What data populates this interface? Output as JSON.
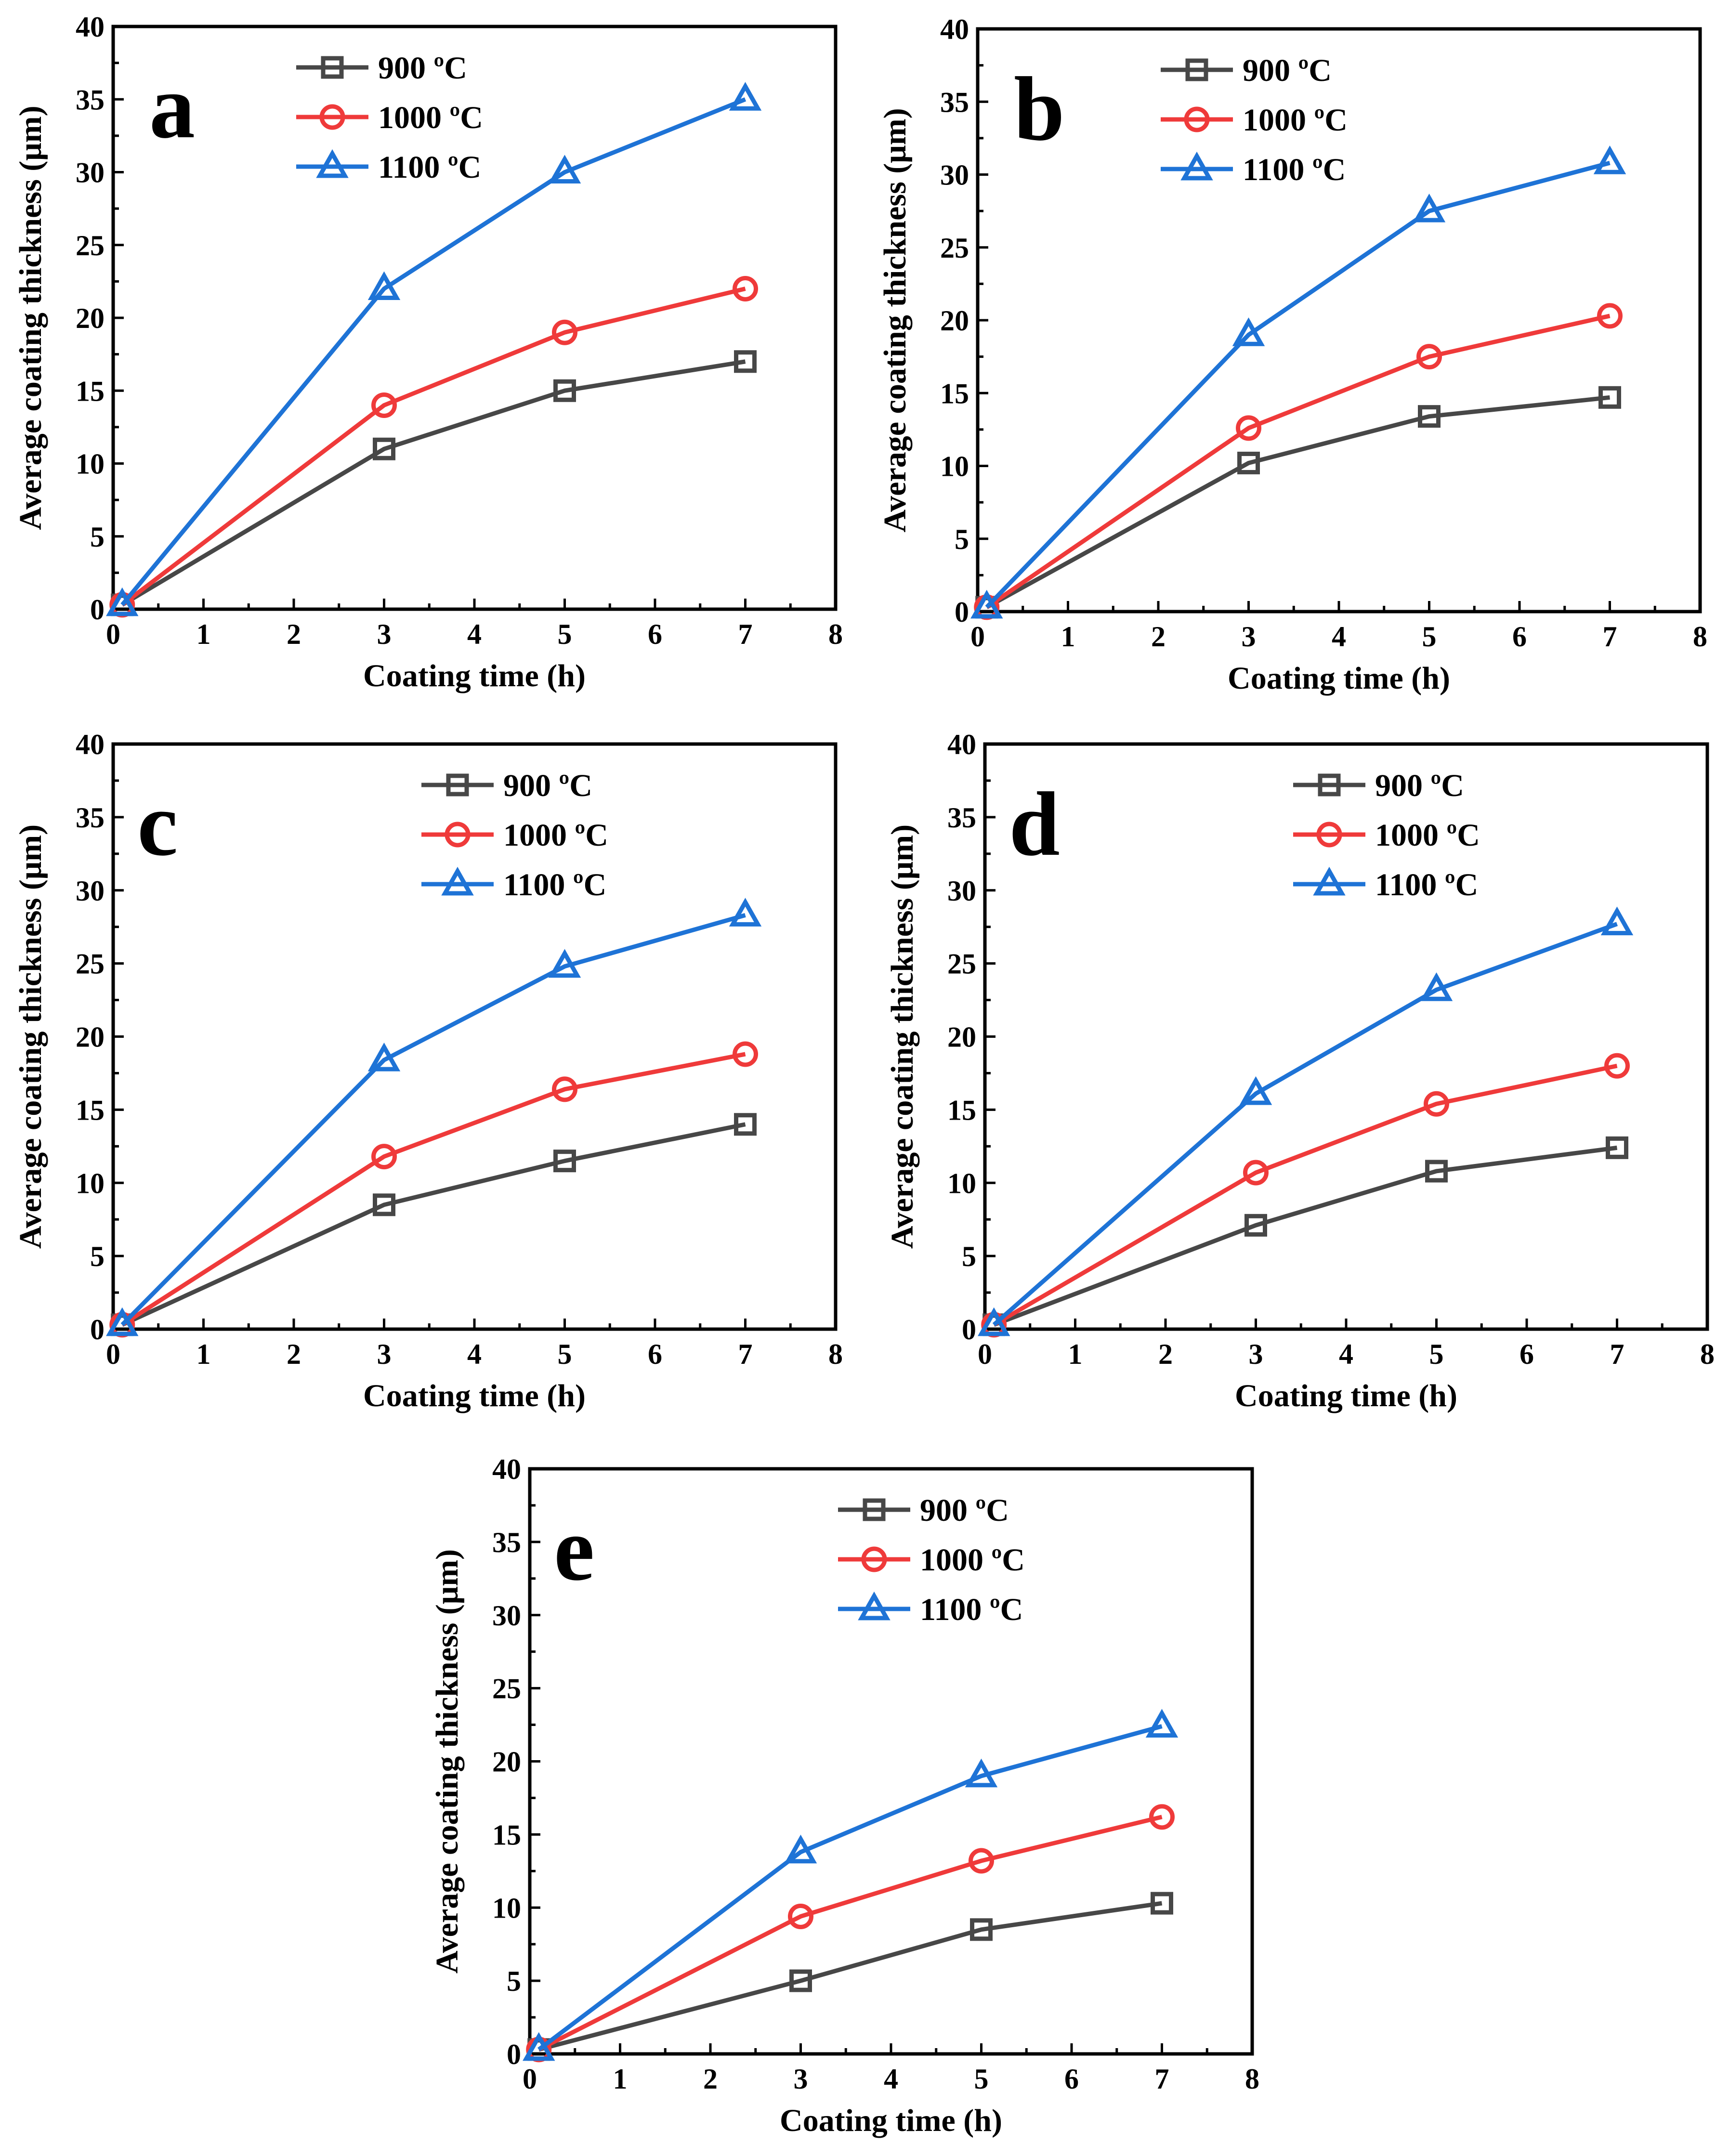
{
  "chart_data": [
    {
      "panel": "a",
      "type": "line",
      "xlabel": "Coating time (h)",
      "ylabel": "Average coating thickness (μm)",
      "xlim": [
        0,
        8
      ],
      "ylim": [
        0,
        40
      ],
      "xticks": [
        0,
        1,
        2,
        3,
        4,
        5,
        6,
        7,
        8
      ],
      "yticks": [
        0,
        5,
        10,
        15,
        20,
        25,
        30,
        35,
        40
      ],
      "x": [
        0.1,
        3,
        5,
        7
      ],
      "series": [
        {
          "name": "900 ºC",
          "color": "#474747",
          "marker": "square",
          "values": [
            0.3,
            11,
            15,
            17
          ]
        },
        {
          "name": "1000 ºC",
          "color": "#ef3a3a",
          "marker": "circle",
          "values": [
            0.3,
            14,
            19,
            22
          ]
        },
        {
          "name": "1100 ºC",
          "color": "#1e73d6",
          "marker": "triangle",
          "values": [
            0.3,
            22,
            30,
            35
          ]
        }
      ],
      "legend": "top-left"
    },
    {
      "panel": "b",
      "type": "line",
      "xlabel": "Coating time (h)",
      "ylabel": "Average coating thickness (μm)",
      "xlim": [
        0,
        8
      ],
      "ylim": [
        0,
        40
      ],
      "xticks": [
        0,
        1,
        2,
        3,
        4,
        5,
        6,
        7,
        8
      ],
      "yticks": [
        0,
        5,
        10,
        15,
        20,
        25,
        30,
        35,
        40
      ],
      "x": [
        0.1,
        3,
        5,
        7
      ],
      "series": [
        {
          "name": "900 ºC",
          "color": "#474747",
          "marker": "square",
          "values": [
            0.3,
            10.2,
            13.4,
            14.7
          ]
        },
        {
          "name": "1000 ºC",
          "color": "#ef3a3a",
          "marker": "circle",
          "values": [
            0.3,
            12.6,
            17.5,
            20.3
          ]
        },
        {
          "name": "1100 ºC",
          "color": "#1e73d6",
          "marker": "triangle",
          "values": [
            0.3,
            19,
            27.5,
            30.8
          ]
        }
      ],
      "legend": "top-left"
    },
    {
      "panel": "c",
      "type": "line",
      "xlabel": "Coating time (h)",
      "ylabel": "Average coating thickness (μm)",
      "xlim": [
        0,
        8
      ],
      "ylim": [
        0,
        40
      ],
      "xticks": [
        0,
        1,
        2,
        3,
        4,
        5,
        6,
        7,
        8
      ],
      "yticks": [
        0,
        5,
        10,
        15,
        20,
        25,
        30,
        35,
        40
      ],
      "x": [
        0.1,
        3,
        5,
        7
      ],
      "series": [
        {
          "name": "900 ºC",
          "color": "#474747",
          "marker": "square",
          "values": [
            0.3,
            8.5,
            11.5,
            14
          ]
        },
        {
          "name": "1000 ºC",
          "color": "#ef3a3a",
          "marker": "circle",
          "values": [
            0.3,
            11.8,
            16.4,
            18.8
          ]
        },
        {
          "name": "1100 ºC",
          "color": "#1e73d6",
          "marker": "triangle",
          "values": [
            0.3,
            18.4,
            24.8,
            28.3
          ]
        }
      ],
      "legend": "top-right"
    },
    {
      "panel": "d",
      "type": "line",
      "xlabel": "Coating time (h)",
      "ylabel": "Average coating thickness (μm)",
      "xlim": [
        0,
        8
      ],
      "ylim": [
        0,
        40
      ],
      "xticks": [
        0,
        1,
        2,
        3,
        4,
        5,
        6,
        7,
        8
      ],
      "yticks": [
        0,
        5,
        10,
        15,
        20,
        25,
        30,
        35,
        40
      ],
      "x": [
        0.1,
        3,
        5,
        7
      ],
      "series": [
        {
          "name": "900 ºC",
          "color": "#474747",
          "marker": "square",
          "values": [
            0.3,
            7.1,
            10.8,
            12.4
          ]
        },
        {
          "name": "1000 ºC",
          "color": "#ef3a3a",
          "marker": "circle",
          "values": [
            0.3,
            10.7,
            15.4,
            18
          ]
        },
        {
          "name": "1100 ºC",
          "color": "#1e73d6",
          "marker": "triangle",
          "values": [
            0.3,
            16.1,
            23.2,
            27.7
          ]
        }
      ],
      "legend": "top-right"
    },
    {
      "panel": "e",
      "type": "line",
      "xlabel": "Coating time (h)",
      "ylabel": "Average coating thickness (μm)",
      "xlim": [
        0,
        8
      ],
      "ylim": [
        0,
        40
      ],
      "xticks": [
        0,
        1,
        2,
        3,
        4,
        5,
        6,
        7,
        8
      ],
      "yticks": [
        0,
        5,
        10,
        15,
        20,
        25,
        30,
        35,
        40
      ],
      "x": [
        0.1,
        3,
        5,
        7
      ],
      "series": [
        {
          "name": "900 ºC",
          "color": "#474747",
          "marker": "square",
          "values": [
            0.3,
            5,
            8.5,
            10.3
          ]
        },
        {
          "name": "1000 ºC",
          "color": "#ef3a3a",
          "marker": "circle",
          "values": [
            0.3,
            9.4,
            13.2,
            16.2
          ]
        },
        {
          "name": "1100 ºC",
          "color": "#1e73d6",
          "marker": "triangle",
          "values": [
            0.3,
            13.8,
            19,
            22.4
          ]
        }
      ],
      "legend": "top-right"
    }
  ]
}
